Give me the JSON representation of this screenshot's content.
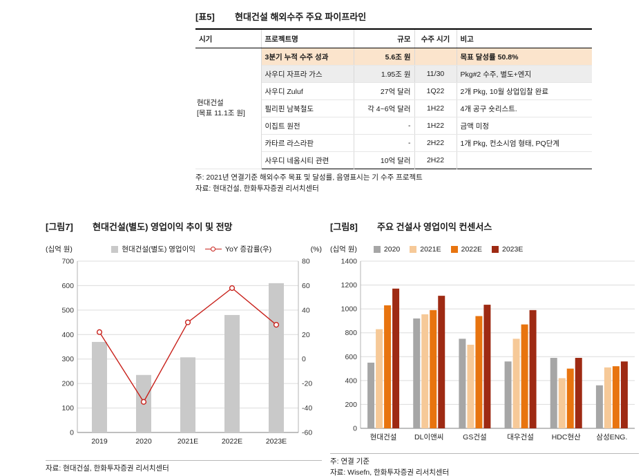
{
  "table5": {
    "tag": "[표5]",
    "title": "현대건설 해외수주 주요 파이프라인",
    "headers": [
      "시기",
      "프로젝트명",
      "규모",
      "수주 시기",
      "비고"
    ],
    "period_cell": {
      "line1": "현대건설",
      "line2": "[목표 11.1조 원]"
    },
    "rows": [
      {
        "project": "3분기 누적 수주 성과",
        "size": "5.6조 원",
        "timing": "",
        "note": "목표 달성률 50.8%"
      },
      {
        "project": "사우디 자프라 가스",
        "size": "1.95조 원",
        "timing": "11/30",
        "note": "Pkg#2 수주, 별도+엔지"
      },
      {
        "project": "사우디 Zuluf",
        "size": "27억 달러",
        "timing": "1Q22",
        "note": "2개 Pkg, 10월 상업입찰 완료"
      },
      {
        "project": "필리핀 남북철도",
        "size": "각 4~6억 달러",
        "timing": "1H22",
        "note": "4개 공구 숏리스트."
      },
      {
        "project": "이집트 원전",
        "size": "-",
        "timing": "1H22",
        "note": "금액 미정"
      },
      {
        "project": "카타르 라스라판",
        "size": "-",
        "timing": "2H22",
        "note": "1개 Pkg, 컨소시엄 형태, PQ단계"
      },
      {
        "project": "사우디 네옴시티 관련",
        "size": "10억 달러",
        "timing": "2H22",
        "note": ""
      }
    ],
    "footnote1": "주: 2021년 연결기준 해외수주 목표 및 달성률, 음영표시는 기 수주 프로젝트",
    "footnote2": "자료: 현대건설, 한화투자증권 리서치센터"
  },
  "figures": {
    "fig7": {
      "tag": "[그림7]",
      "source": "자료: 현대건설, 한화투자증권 리서치센터"
    },
    "fig8": {
      "tag": "[그림8]",
      "note": "주: 연결 기준",
      "source": "자료: Wisefn, 한화투자증권 리서치센터"
    }
  },
  "chart_data": [
    {
      "id": "fig7",
      "type": "bar+line",
      "title": "현대건설(별도) 영업이익 추이 및 전망",
      "categories": [
        "2019",
        "2020",
        "2021E",
        "2022E",
        "2023E"
      ],
      "bar_series": {
        "name": "현대건설(별도) 영업이익",
        "values": [
          370,
          235,
          307,
          480,
          610
        ],
        "color": "#c9c9c9"
      },
      "line_series": {
        "name": "YoY 증감률(우)",
        "values": [
          22,
          -35,
          30,
          58,
          28
        ],
        "color": "#c8201a",
        "axis": "right"
      },
      "left_axis": {
        "label": "(십억 원)",
        "min": 0,
        "max": 700,
        "step": 100
      },
      "right_axis": {
        "label": "(%)",
        "min": -60,
        "max": 80,
        "step": 20
      },
      "grid": true,
      "legend_position": "top"
    },
    {
      "id": "fig8",
      "type": "bar",
      "title": "주요 건설사 영업이익 컨센서스",
      "categories": [
        "현대건설",
        "DL이앤씨",
        "GS건설",
        "대우건설",
        "HDC현산",
        "삼성ENG."
      ],
      "series": [
        {
          "name": "2020",
          "color": "#a6a6a6",
          "values": [
            550,
            920,
            750,
            560,
            590,
            360
          ]
        },
        {
          "name": "2021E",
          "color": "#f6c998",
          "values": [
            830,
            955,
            700,
            750,
            420,
            510
          ]
        },
        {
          "name": "2022E",
          "color": "#e8740f",
          "values": [
            1030,
            990,
            940,
            870,
            500,
            520
          ]
        },
        {
          "name": "2023E",
          "color": "#9e2a13",
          "values": [
            1170,
            1110,
            1035,
            990,
            590,
            560
          ]
        }
      ],
      "left_axis": {
        "label": "(십억 원)",
        "min": 0,
        "max": 1400,
        "step": 200
      },
      "grid": true,
      "legend_position": "top"
    }
  ]
}
